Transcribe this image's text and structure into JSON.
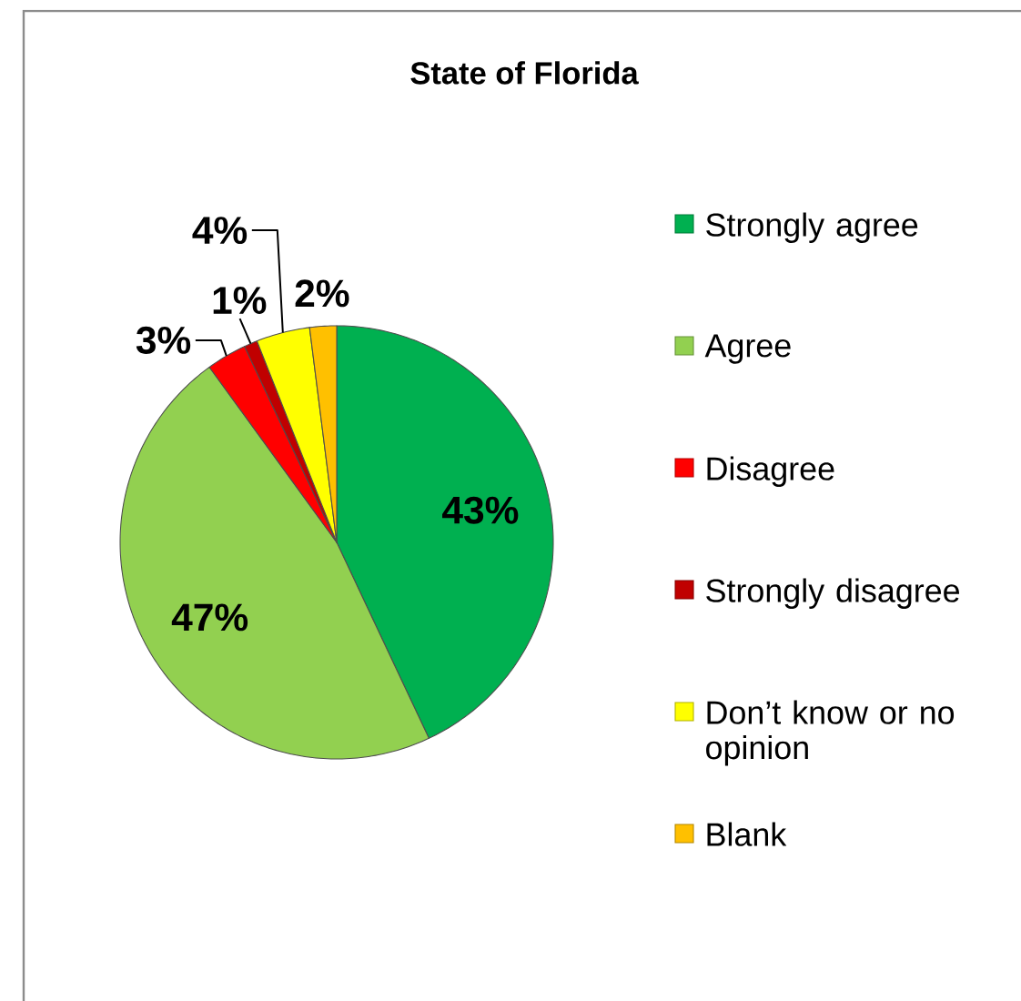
{
  "chart_data": {
    "type": "pie",
    "title": "State of Florida",
    "categories": [
      "Strongly agree",
      "Agree",
      "Disagree",
      "Strongly disagree",
      "Don’t know or no opinion",
      "Blank"
    ],
    "values": [
      43,
      47,
      3,
      1,
      4,
      2
    ],
    "colors": [
      "#00b050",
      "#92d050",
      "#ff0000",
      "#c00000",
      "#ffff00",
      "#ffc000"
    ],
    "value_labels": [
      "43%",
      "47%",
      "3%",
      "1%",
      "4%",
      "2%"
    ],
    "legend": "right"
  }
}
